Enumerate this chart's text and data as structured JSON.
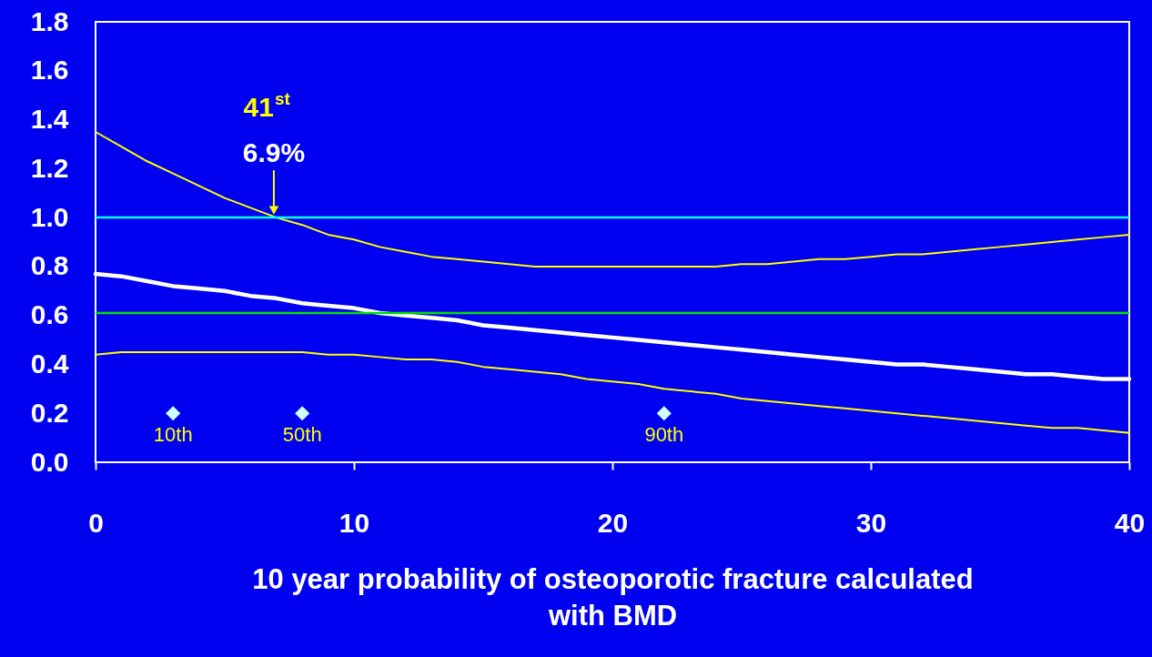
{
  "chart_data": {
    "type": "line",
    "xlabel": "10 year probability of osteoporotic fracture calculated with BMD",
    "x": [
      0,
      1,
      2,
      3,
      4,
      5,
      6,
      7,
      8,
      9,
      10,
      11,
      12,
      13,
      14,
      15,
      16,
      17,
      18,
      19,
      20,
      21,
      22,
      23,
      24,
      25,
      26,
      27,
      28,
      29,
      30,
      31,
      32,
      33,
      34,
      35,
      36,
      37,
      38,
      39,
      40
    ],
    "series": [
      {
        "color": "#ffff00",
        "values": [
          1.35,
          1.29,
          1.23,
          1.18,
          1.13,
          1.08,
          1.04,
          1.0,
          0.97,
          0.93,
          0.91,
          0.88,
          0.86,
          0.84,
          0.83,
          0.82,
          0.81,
          0.8,
          0.8,
          0.8,
          0.8,
          0.8,
          0.8,
          0.8,
          0.8,
          0.81,
          0.81,
          0.82,
          0.83,
          0.83,
          0.84,
          0.85,
          0.85,
          0.86,
          0.87,
          0.88,
          0.89,
          0.9,
          0.91,
          0.92,
          0.93
        ]
      },
      {
        "color": "#ffffff",
        "values": [
          0.77,
          0.76,
          0.74,
          0.72,
          0.71,
          0.7,
          0.68,
          0.67,
          0.65,
          0.64,
          0.63,
          0.61,
          0.6,
          0.59,
          0.58,
          0.56,
          0.55,
          0.54,
          0.53,
          0.52,
          0.51,
          0.5,
          0.49,
          0.48,
          0.47,
          0.46,
          0.45,
          0.44,
          0.43,
          0.42,
          0.41,
          0.4,
          0.4,
          0.39,
          0.38,
          0.37,
          0.36,
          0.36,
          0.35,
          0.34,
          0.34
        ]
      },
      {
        "color": "#ffff00",
        "values": [
          0.44,
          0.45,
          0.45,
          0.45,
          0.45,
          0.45,
          0.45,
          0.45,
          0.45,
          0.44,
          0.44,
          0.43,
          0.42,
          0.42,
          0.41,
          0.39,
          0.38,
          0.37,
          0.36,
          0.34,
          0.33,
          0.32,
          0.3,
          0.29,
          0.28,
          0.26,
          0.25,
          0.24,
          0.23,
          0.22,
          0.21,
          0.2,
          0.19,
          0.18,
          0.17,
          0.16,
          0.15,
          0.14,
          0.14,
          0.13,
          0.12
        ]
      },
      {
        "type": "scatter",
        "marker": "diamond",
        "color": "#ccffff",
        "x": [
          3,
          8,
          22
        ],
        "values": [
          0.2,
          0.2,
          0.2
        ]
      }
    ],
    "xlim": [
      0,
      40
    ],
    "xticks": [
      0,
      10,
      20,
      30,
      40
    ],
    "ylim": [
      0,
      1.8
    ],
    "yticks": [
      {
        "value": 0,
        "label": "0.0"
      },
      {
        "value": 0.2,
        "label": "0.2"
      },
      {
        "value": 0.4,
        "label": "0.4"
      },
      {
        "value": 0.6,
        "label": "0.6"
      },
      {
        "value": 0.8,
        "label": "0.8"
      },
      {
        "value": 1,
        "label": "1.0"
      },
      {
        "value": 1.2,
        "label": "1.2"
      },
      {
        "value": 1.4,
        "label": "1.4"
      },
      {
        "value": 1.6,
        "label": "1.6"
      },
      {
        "value": 1.8,
        "label": "1.8"
      }
    ],
    "ref_lines": [
      {
        "axis": "y",
        "value": 1.0,
        "color": "#00ffff"
      },
      {
        "axis": "y",
        "value": 0.61,
        "color": "#00e000"
      }
    ],
    "annotations": [
      "41$^{st}$",
      {
        "text": "6.9%",
        "x": 6.9,
        "y": 1.0
      },
      {
        "text": "10th",
        "x": 3,
        "y": 0.2
      },
      {
        "text": "50th",
        "x": 8,
        "y": 0.2
      },
      {
        "text": "90th",
        "x": 22,
        "y": 0.2
      }
    ],
    "grid": false,
    "marker": "none",
    "line_style": "solid"
  }
}
